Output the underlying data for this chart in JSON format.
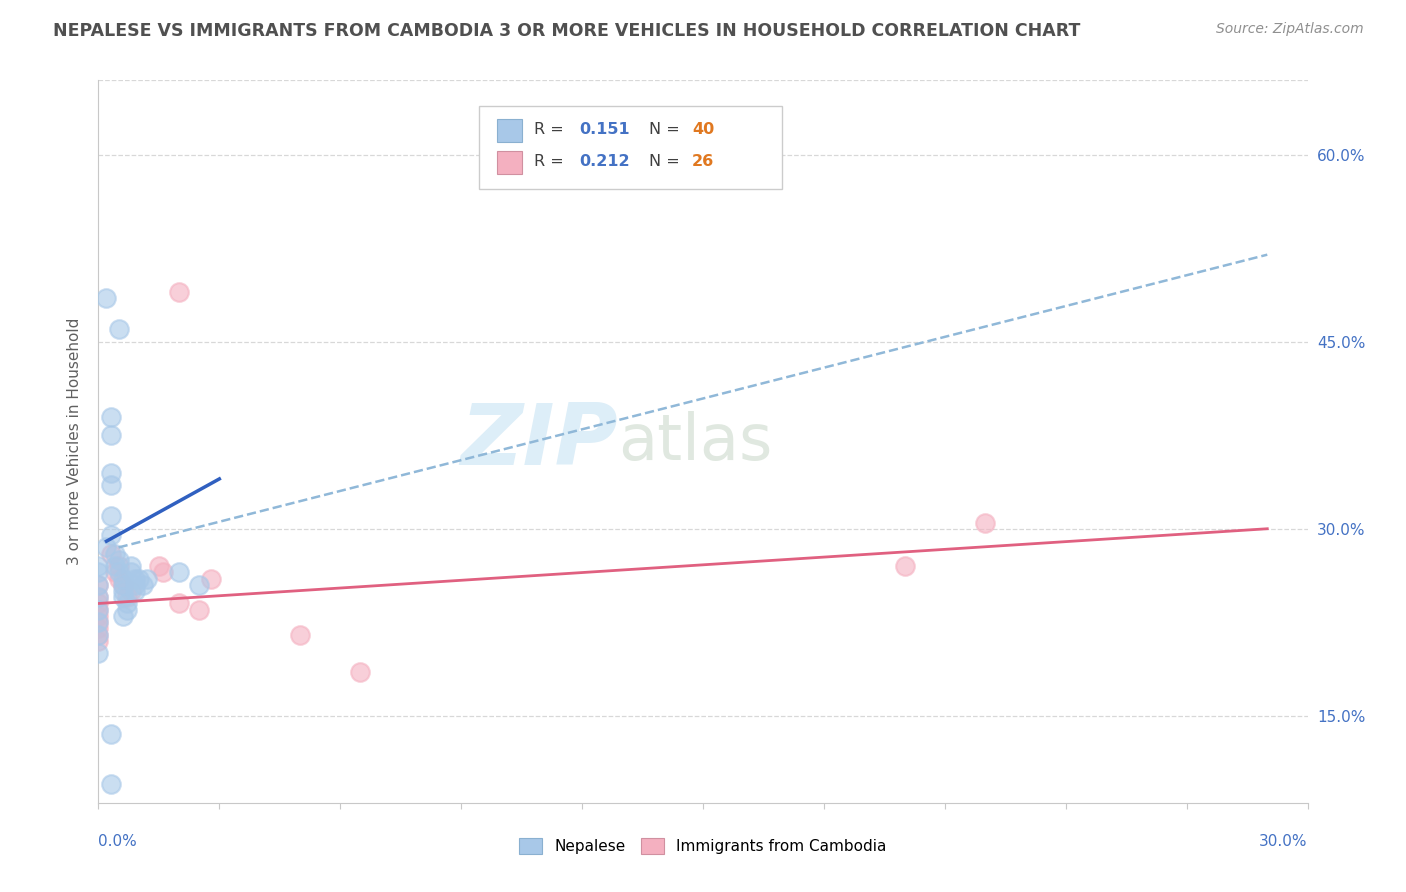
{
  "title": "NEPALESE VS IMMIGRANTS FROM CAMBODIA 3 OR MORE VEHICLES IN HOUSEHOLD CORRELATION CHART",
  "source": "Source: ZipAtlas.com",
  "ylabel": "3 or more Vehicles in Household",
  "xmin": 0.0,
  "xmax": 0.3,
  "ymin": 0.08,
  "ymax": 0.66,
  "nepalese_R": 0.151,
  "nepalese_N": 40,
  "cambodia_R": 0.212,
  "cambodia_N": 26,
  "nepalese_color": "#a8c8e8",
  "cambodia_color": "#f4b0c0",
  "nepalese_line_color": "#3060c0",
  "cambodia_line_color": "#e06080",
  "nepalese_dashed_color": "#90b8d8",
  "nepalese_scatter": [
    [
      0.002,
      0.485
    ],
    [
      0.005,
      0.46
    ],
    [
      0.003,
      0.39
    ],
    [
      0.003,
      0.375
    ],
    [
      0.003,
      0.345
    ],
    [
      0.003,
      0.335
    ],
    [
      0.003,
      0.31
    ],
    [
      0.003,
      0.295
    ],
    [
      0.002,
      0.285
    ],
    [
      0.004,
      0.28
    ],
    [
      0.005,
      0.275
    ],
    [
      0.004,
      0.27
    ],
    [
      0.005,
      0.265
    ],
    [
      0.006,
      0.26
    ],
    [
      0.006,
      0.255
    ],
    [
      0.006,
      0.25
    ],
    [
      0.006,
      0.245
    ],
    [
      0.007,
      0.24
    ],
    [
      0.007,
      0.235
    ],
    [
      0.006,
      0.23
    ],
    [
      0.008,
      0.27
    ],
    [
      0.008,
      0.265
    ],
    [
      0.009,
      0.26
    ],
    [
      0.009,
      0.255
    ],
    [
      0.009,
      0.25
    ],
    [
      0.01,
      0.26
    ],
    [
      0.011,
      0.255
    ],
    [
      0.012,
      0.26
    ],
    [
      0.02,
      0.265
    ],
    [
      0.025,
      0.255
    ],
    [
      0.0,
      0.27
    ],
    [
      0.0,
      0.265
    ],
    [
      0.0,
      0.255
    ],
    [
      0.0,
      0.245
    ],
    [
      0.0,
      0.235
    ],
    [
      0.0,
      0.225
    ],
    [
      0.0,
      0.215
    ],
    [
      0.0,
      0.2
    ],
    [
      0.003,
      0.135
    ],
    [
      0.003,
      0.095
    ]
  ],
  "cambodia_scatter": [
    [
      0.0,
      0.255
    ],
    [
      0.0,
      0.245
    ],
    [
      0.0,
      0.24
    ],
    [
      0.0,
      0.235
    ],
    [
      0.0,
      0.23
    ],
    [
      0.0,
      0.225
    ],
    [
      0.0,
      0.22
    ],
    [
      0.0,
      0.215
    ],
    [
      0.0,
      0.21
    ],
    [
      0.003,
      0.28
    ],
    [
      0.004,
      0.265
    ],
    [
      0.005,
      0.27
    ],
    [
      0.005,
      0.26
    ],
    [
      0.006,
      0.255
    ],
    [
      0.007,
      0.245
    ],
    [
      0.008,
      0.25
    ],
    [
      0.015,
      0.27
    ],
    [
      0.016,
      0.265
    ],
    [
      0.02,
      0.24
    ],
    [
      0.025,
      0.235
    ],
    [
      0.02,
      0.49
    ],
    [
      0.028,
      0.26
    ],
    [
      0.05,
      0.215
    ],
    [
      0.065,
      0.185
    ],
    [
      0.2,
      0.27
    ],
    [
      0.22,
      0.305
    ]
  ],
  "nepalese_solid_line": [
    [
      0.002,
      0.29
    ],
    [
      0.03,
      0.34
    ]
  ],
  "nepalese_dashed_line": [
    [
      0.005,
      0.285
    ],
    [
      0.29,
      0.52
    ]
  ],
  "cambodia_solid_line": [
    [
      0.0,
      0.24
    ],
    [
      0.29,
      0.3
    ]
  ],
  "ytick_positions": [
    0.15,
    0.3,
    0.45,
    0.6
  ],
  "ytick_labels": [
    "15.0%",
    "30.0%",
    "45.0%",
    "60.0%"
  ],
  "background_color": "#ffffff",
  "grid_color": "#d8d8d8",
  "title_color": "#505050",
  "axis_label_color": "#4472c4",
  "legend_R_color": "#4472c4",
  "legend_N_color": "#e07820"
}
